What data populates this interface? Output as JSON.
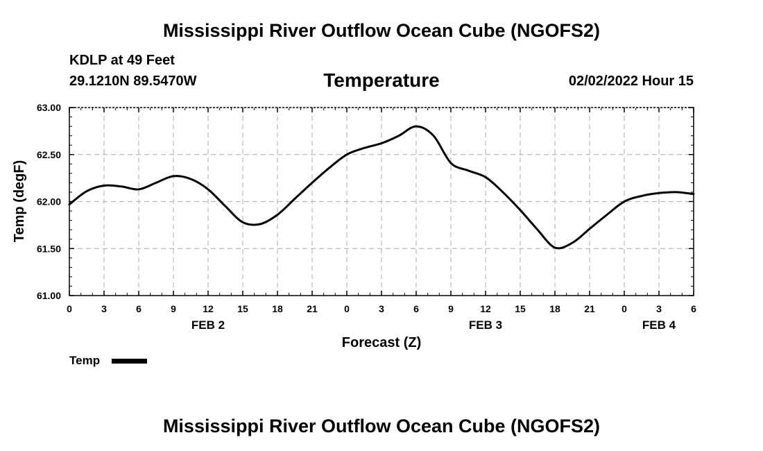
{
  "header": {
    "title": "Mississippi River Outflow Ocean Cube (NGOFS2)",
    "station": "KDLP at 49 Feet",
    "coordinates": "29.1210N  89.5470W",
    "timestamp": "02/02/2022 Hour 15"
  },
  "footer": {
    "title": "Mississippi River Outflow Ocean Cube (NGOFS2)"
  },
  "chart_data": {
    "type": "line",
    "title": "Temperature",
    "xlabel": "Forecast (Z)",
    "ylabel": "Temp (degF)",
    "xlim": [
      0,
      54
    ],
    "ylim": [
      61.0,
      63.0
    ],
    "grid": true,
    "legend_position": "bottom-left",
    "x_ticks": [
      0,
      3,
      6,
      9,
      12,
      15,
      18,
      21,
      24,
      27,
      30,
      33,
      36,
      39,
      42,
      45,
      48,
      51,
      54
    ],
    "x_tick_labels": [
      "0",
      "3",
      "6",
      "9",
      "12",
      "15",
      "18",
      "21",
      "0",
      "3",
      "6",
      "9",
      "12",
      "15",
      "18",
      "21",
      "0",
      "3",
      "6"
    ],
    "y_ticks": [
      61.0,
      61.5,
      62.0,
      62.5,
      63.0
    ],
    "y_tick_labels": [
      "61.00",
      "61.50",
      "62.00",
      "62.50",
      "63.00"
    ],
    "day_labels": [
      {
        "x": 12,
        "label": "FEB 2"
      },
      {
        "x": 36,
        "label": "FEB 3"
      },
      {
        "x": 51,
        "label": "FEB 4"
      }
    ],
    "series": [
      {
        "name": "Temp",
        "color": "#000000",
        "x": [
          0,
          1.5,
          3,
          4.5,
          6,
          7.5,
          9,
          10.5,
          12,
          13.5,
          15,
          16.5,
          18,
          19.5,
          21,
          22.5,
          24,
          25.5,
          27,
          28.5,
          30,
          31.5,
          33,
          34.5,
          36,
          37.5,
          39,
          40.5,
          42,
          43.5,
          45,
          46.5,
          48,
          49.5,
          51,
          52.5,
          54
        ],
        "values": [
          61.97,
          62.11,
          62.17,
          62.16,
          62.13,
          62.2,
          62.27,
          62.24,
          62.13,
          61.95,
          61.78,
          61.76,
          61.86,
          62.03,
          62.2,
          62.36,
          62.5,
          62.57,
          62.62,
          62.7,
          62.8,
          62.7,
          62.41,
          62.33,
          62.26,
          62.1,
          61.91,
          61.7,
          61.51,
          61.56,
          61.71,
          61.86,
          62.0,
          62.06,
          62.09,
          62.1,
          62.08
        ]
      }
    ]
  }
}
